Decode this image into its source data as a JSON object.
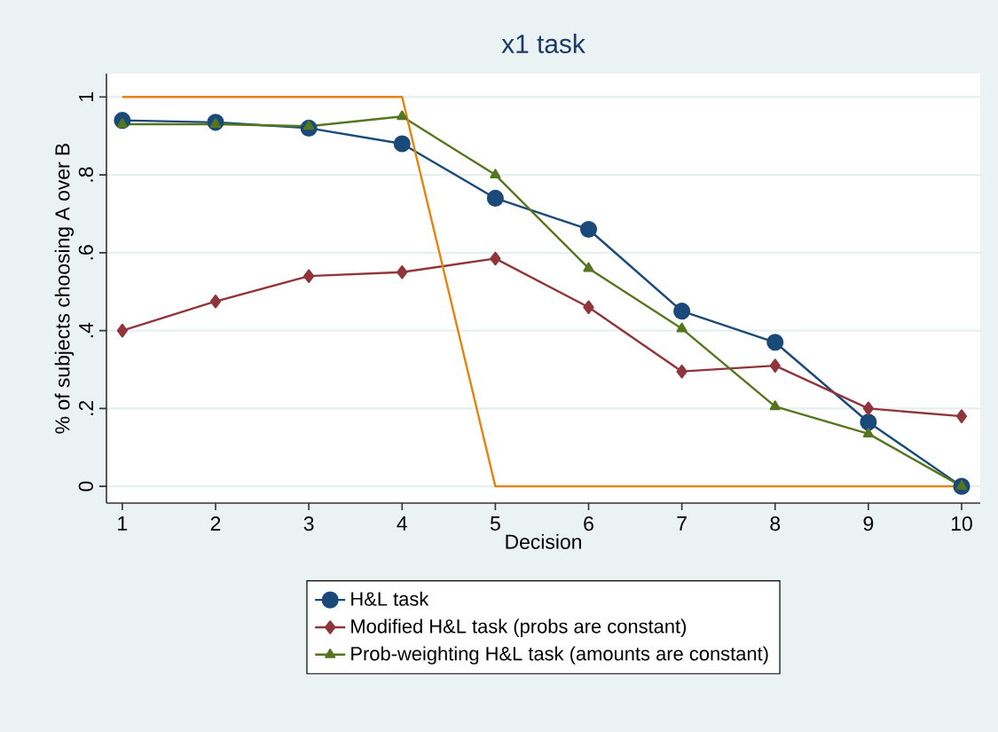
{
  "chart_data": {
    "type": "line",
    "title": "x1 task",
    "xlabel": "Decision",
    "ylabel": "% of subjects choosing A over B",
    "x": [
      1,
      2,
      3,
      4,
      5,
      6,
      7,
      8,
      9,
      10
    ],
    "series": [
      {
        "name": "H&L task",
        "color": "#1a4a7a",
        "marker": "circle",
        "values": [
          0.94,
          0.935,
          0.92,
          0.88,
          0.74,
          0.66,
          0.45,
          0.37,
          0.165,
          0
        ]
      },
      {
        "name": "Modified H&L task (probs are constant)",
        "color": "#90353b",
        "marker": "diamond",
        "values": [
          0.4,
          0.475,
          0.54,
          0.55,
          0.585,
          0.46,
          0.295,
          0.31,
          0.2,
          0.18
        ]
      },
      {
        "name": "Prob-weighting H&L task (amounts are constant)",
        "color": "#55761f",
        "marker": "triangle",
        "values": [
          0.93,
          0.93,
          0.925,
          0.95,
          0.8,
          0.56,
          0.405,
          0.205,
          0.135,
          0
        ]
      },
      {
        "color": "#e8820c",
        "marker": "none",
        "values": [
          1,
          1,
          1,
          1,
          0,
          0,
          0,
          0,
          0,
          0
        ]
      }
    ],
    "xlim": [
      0.83,
      10.2
    ],
    "xticks": [
      1,
      2,
      3,
      4,
      5,
      6,
      7,
      8,
      9,
      10
    ],
    "ylim": [
      -0.043,
      1.06
    ],
    "yticks": [
      0,
      {
        "value": 0.2,
        "label": ".2"
      },
      {
        "value": 0.4,
        "label": ".4"
      },
      {
        "value": 0.6,
        "label": ".6"
      },
      {
        "value": 0.8,
        "label": ".8"
      },
      1
    ],
    "grid": "y",
    "legend": "bottom",
    "line_style": "solid"
  }
}
